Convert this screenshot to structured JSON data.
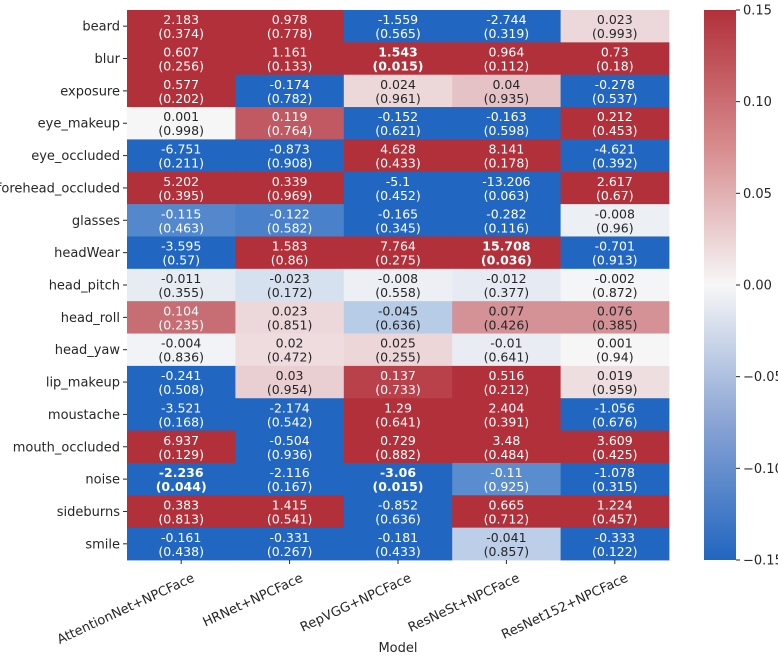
{
  "chart_data": {
    "type": "heatmap",
    "xlabel": "Model",
    "ylabel": "",
    "columns": [
      "AttentionNet+NPCFace",
      "HRNet+NPCFace",
      "RepVGG+NPCFace",
      "ResNeSt+NPCFace",
      "ResNet152+NPCFace"
    ],
    "rows": [
      "beard",
      "blur",
      "exposure",
      "eye_makeup",
      "eye_occluded",
      "forehead_occluded",
      "glasses",
      "headWear",
      "head_pitch",
      "head_roll",
      "head_yaw",
      "lip_makeup",
      "moustache",
      "mouth_occluded",
      "noise",
      "sideburns",
      "smile"
    ],
    "coefficients": [
      [
        "2.183",
        "0.978",
        "-1.559",
        "-2.744",
        "0.023"
      ],
      [
        "0.607",
        "1.161",
        "1.543",
        "0.964",
        "0.73"
      ],
      [
        "0.577",
        "-0.174",
        "0.024",
        "0.04",
        "-0.278"
      ],
      [
        "0.001",
        "0.119",
        "-0.152",
        "-0.163",
        "0.212"
      ],
      [
        "-6.751",
        "-0.873",
        "4.628",
        "8.141",
        "-4.621"
      ],
      [
        "5.202",
        "0.339",
        "-5.1",
        "-13.206",
        "2.617"
      ],
      [
        "-0.115",
        "-0.122",
        "-0.165",
        "-0.282",
        "-0.008"
      ],
      [
        "-3.595",
        "1.583",
        "7.764",
        "15.708",
        "-0.701"
      ],
      [
        "-0.011",
        "-0.023",
        "-0.008",
        "-0.012",
        "-0.002"
      ],
      [
        "0.104",
        "0.023",
        "-0.045",
        "0.077",
        "0.076"
      ],
      [
        "-0.004",
        "0.02",
        "0.025",
        "-0.01",
        "0.001"
      ],
      [
        "-0.241",
        "0.03",
        "0.137",
        "0.516",
        "0.019"
      ],
      [
        "-3.521",
        "-2.174",
        "1.29",
        "2.404",
        "-1.056"
      ],
      [
        "6.937",
        "-0.504",
        "0.729",
        "3.48",
        "3.609"
      ],
      [
        "-2.236",
        "-2.116",
        "-3.06",
        "-0.11",
        "-1.078"
      ],
      [
        "0.383",
        "1.415",
        "-0.852",
        "0.665",
        "1.224"
      ],
      [
        "-0.161",
        "-0.331",
        "-0.181",
        "-0.041",
        "-0.333"
      ]
    ],
    "p_values": [
      [
        "(0.374)",
        "(0.778)",
        "(0.565)",
        "(0.319)",
        "(0.993)"
      ],
      [
        "(0.256)",
        "(0.133)",
        "(0.015)",
        "(0.112)",
        "(0.18)"
      ],
      [
        "(0.202)",
        "(0.782)",
        "(0.961)",
        "(0.935)",
        "(0.537)"
      ],
      [
        "(0.998)",
        "(0.764)",
        "(0.621)",
        "(0.598)",
        "(0.453)"
      ],
      [
        "(0.211)",
        "(0.908)",
        "(0.433)",
        "(0.178)",
        "(0.392)"
      ],
      [
        "(0.395)",
        "(0.969)",
        "(0.452)",
        "(0.063)",
        "(0.67)"
      ],
      [
        "(0.463)",
        "(0.582)",
        "(0.345)",
        "(0.116)",
        "(0.96)"
      ],
      [
        "(0.57)",
        "(0.86)",
        "(0.275)",
        "(0.036)",
        "(0.913)"
      ],
      [
        "(0.355)",
        "(0.172)",
        "(0.558)",
        "(0.377)",
        "(0.872)"
      ],
      [
        "(0.235)",
        "(0.851)",
        "(0.636)",
        "(0.426)",
        "(0.385)"
      ],
      [
        "(0.836)",
        "(0.472)",
        "(0.255)",
        "(0.641)",
        "(0.94)"
      ],
      [
        "(0.508)",
        "(0.954)",
        "(0.733)",
        "(0.212)",
        "(0.959)"
      ],
      [
        "(0.168)",
        "(0.542)",
        "(0.641)",
        "(0.391)",
        "(0.676)"
      ],
      [
        "(0.129)",
        "(0.936)",
        "(0.882)",
        "(0.484)",
        "(0.425)"
      ],
      [
        "(0.044)",
        "(0.167)",
        "(0.015)",
        "(0.925)",
        "(0.315)"
      ],
      [
        "(0.813)",
        "(0.541)",
        "(0.636)",
        "(0.712)",
        "(0.457)"
      ],
      [
        "(0.438)",
        "(0.267)",
        "(0.433)",
        "(0.857)",
        "(0.122)"
      ]
    ],
    "bold_cells": [
      [
        1,
        2
      ],
      [
        7,
        3
      ],
      [
        14,
        0
      ],
      [
        14,
        2
      ]
    ],
    "color_range": [
      -0.15,
      0.15
    ],
    "colorbar_ticks": [
      "0.15",
      "0.10",
      "0.05",
      "0.00",
      "−0.05",
      "−0.10",
      "−0.15"
    ],
    "colorbar_tick_values": [
      0.15,
      0.1,
      0.05,
      0.0,
      -0.05,
      -0.1,
      -0.15
    ],
    "colormap": {
      "low": "#2166c0",
      "mid": "#f7f7f7",
      "high": "#b2303a"
    }
  }
}
